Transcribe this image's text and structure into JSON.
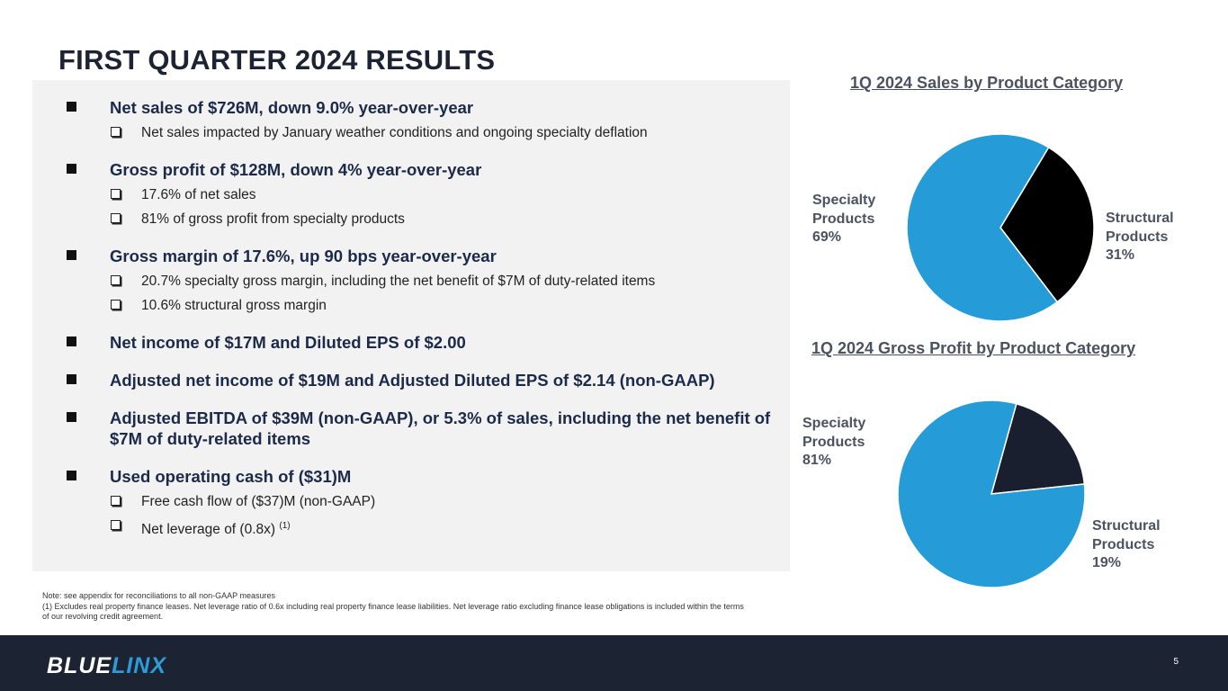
{
  "title": "FIRST QUARTER 2024 RESULTS",
  "bullets": [
    {
      "text": "Net sales of $726M, down 9.0% year-over-year",
      "subs": [
        "Net sales impacted by January weather conditions and ongoing specialty deflation"
      ]
    },
    {
      "text": "Gross profit of $128M, down 4% year-over-year",
      "subs": [
        "17.6% of net sales",
        "81% of gross profit from specialty products"
      ]
    },
    {
      "text": "Gross margin of 17.6%, up 90 bps year-over-year",
      "subs": [
        "20.7% specialty gross margin, including the net benefit of $7M of duty-related items",
        "10.6% structural gross margin"
      ]
    },
    {
      "text": "Net income of $17M and Diluted EPS of $2.00",
      "subs": []
    },
    {
      "text": "Adjusted net income of $19M and Adjusted Diluted EPS of $2.14 (non-GAAP)",
      "subs": []
    },
    {
      "text": "Adjusted EBITDA of $39M (non-GAAP), or 5.3% of sales, including the net benefit of $7M of duty-related items",
      "subs": []
    },
    {
      "text": "Used operating cash of ($31)M",
      "subs": [
        "Free cash flow of ($37)M  (non-GAAP)",
        "Net leverage of (0.8x)"
      ]
    }
  ],
  "footnote_marker": "(1)",
  "notes": [
    "Note: see appendix for reconciliations to all non-GAAP measures",
    "(1) Excludes real property finance leases. Net leverage ratio of 0.6x including real property finance lease liabilities.  Net leverage ratio excluding finance lease obligations is included within the terms of our revolving credit agreement."
  ],
  "chart_data": [
    {
      "type": "pie",
      "title": "1Q 2024 Sales by Product Category",
      "slices": [
        {
          "label": "Specialty Products",
          "label_lines": [
            "Specialty",
            "Products"
          ],
          "value": 69,
          "value_label": "69%",
          "color": "#259bd7"
        },
        {
          "label": "Structural Products",
          "label_lines": [
            "Structural",
            "Products"
          ],
          "value": 31,
          "value_label": "31%",
          "color": "#000000"
        }
      ]
    },
    {
      "type": "pie",
      "title": "1Q 2024 Gross Profit by Product Category",
      "slices": [
        {
          "label": "Specialty Products",
          "label_lines": [
            "Specialty",
            "Products"
          ],
          "value": 81,
          "value_label": "81%",
          "color": "#259bd7"
        },
        {
          "label": "Structural Products",
          "label_lines": [
            "Structural",
            "Products"
          ],
          "value": 19,
          "value_label": "19%",
          "color": "#1a1f30"
        }
      ]
    }
  ],
  "footer": {
    "logo_part1": "BLUE",
    "logo_part2": "LINX",
    "page_number": "5"
  }
}
